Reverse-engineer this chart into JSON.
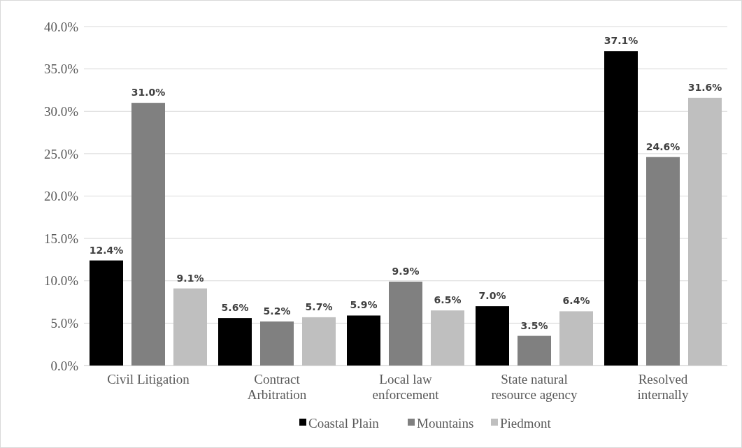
{
  "chart_data": {
    "type": "bar",
    "categories": [
      "Civil Litigation",
      "Contract Arbitration",
      "Local law enforcement",
      "State natural resource agency",
      "Resolved internally"
    ],
    "series": [
      {
        "name": "Coastal Plain",
        "color": "#000000",
        "values": [
          12.4,
          5.6,
          5.9,
          7.0,
          37.1
        ],
        "value_labels": [
          "12.4%",
          "5.6%",
          "5.9%",
          "7.0%",
          "37.1%"
        ]
      },
      {
        "name": "Mountains",
        "color": "#808080",
        "values": [
          31.0,
          5.2,
          9.9,
          3.5,
          24.6
        ],
        "value_labels": [
          "31.0%",
          "5.2%",
          "9.9%",
          "3.5%",
          "24.6%"
        ]
      },
      {
        "name": "Piedmont",
        "color": "#bfbfbf",
        "values": [
          9.1,
          5.7,
          6.5,
          6.4,
          31.6
        ],
        "value_labels": [
          "9.1%",
          "5.7%",
          "6.5%",
          "6.4%",
          "31.6%"
        ]
      }
    ],
    "ylim": [
      0,
      40
    ],
    "yticks": [
      {
        "value": 0,
        "label": "0.0%"
      },
      {
        "value": 5,
        "label": "5.0%"
      },
      {
        "value": 10,
        "label": "10.0%"
      },
      {
        "value": 15,
        "label": "15.0%"
      },
      {
        "value": 20,
        "label": "20.0%"
      },
      {
        "value": 25,
        "label": "25.0%"
      },
      {
        "value": 30,
        "label": "30.0%"
      },
      {
        "value": 35,
        "label": "35.0%"
      },
      {
        "value": 40,
        "label": "40.0%"
      }
    ],
    "grid": "y",
    "legend": "bottom"
  }
}
